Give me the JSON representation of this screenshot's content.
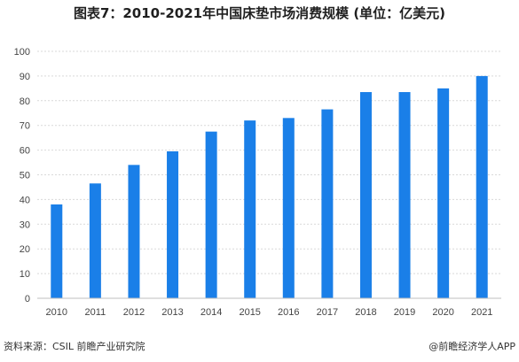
{
  "header": {
    "title": "图表7：2010-2021年中国床垫市场消费规模 (单位：亿美元)"
  },
  "footer": {
    "source": "资料来源：CSIL 前瞻产业研究院",
    "brand": "@前瞻经济学人APP"
  },
  "colors": {
    "bar": "#1a7fe8",
    "gridline": "#d9d9d9",
    "axis": "#bfbfbf"
  },
  "chart_data": {
    "type": "bar",
    "title": "图表7：2010-2021年中国床垫市场消费规模 (单位：亿美元)",
    "categories": [
      "2010",
      "2011",
      "2012",
      "2013",
      "2014",
      "2015",
      "2016",
      "2017",
      "2018",
      "2019",
      "2020",
      "2021"
    ],
    "values": [
      38,
      46.5,
      54,
      59.5,
      67.5,
      72,
      73,
      76.5,
      83.5,
      83.5,
      85,
      90
    ],
    "ylim": [
      0,
      100
    ],
    "yticks": [
      "0",
      "10",
      "20",
      "30",
      "40",
      "50",
      "60",
      "70",
      "80",
      "90",
      "100"
    ],
    "grid": true,
    "legend": "none"
  }
}
